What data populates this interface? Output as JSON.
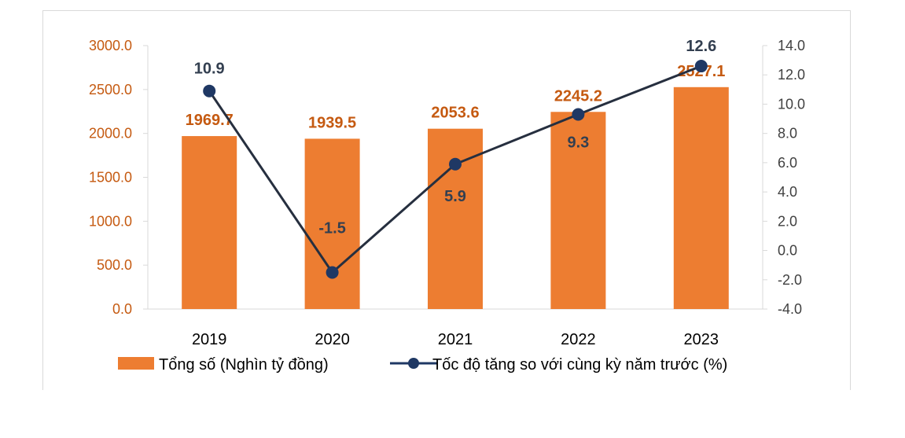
{
  "chart_data": {
    "type": "bar",
    "categories": [
      "2019",
      "2020",
      "2021",
      "2022",
      "2023"
    ],
    "series": [
      {
        "name": "Tổng số (Nghìn tỷ đồng)",
        "type": "bar",
        "axis": "left",
        "values": [
          1969.7,
          1939.5,
          2053.6,
          2245.2,
          2527.1
        ],
        "labels": [
          "1969.7",
          "1939.5",
          "2053.6",
          "2245.2",
          "2527.1"
        ],
        "color": "#ed7d31"
      },
      {
        "name": "Tốc độ tăng so với cùng kỳ năm trước (%)",
        "type": "line",
        "axis": "right",
        "values": [
          10.9,
          -1.5,
          5.9,
          9.3,
          12.6
        ],
        "labels": [
          "10.9",
          "-1.5",
          "5.9",
          "9.3",
          "12.6"
        ],
        "color": "#1f3864"
      }
    ],
    "ylim_left": [
      0,
      3000
    ],
    "yticks_left": [
      "0.0",
      "500.0",
      "1000.0",
      "1500.0",
      "2000.0",
      "2500.0",
      "3000.0"
    ],
    "ylim_right": [
      -4,
      14
    ],
    "yticks_right": [
      "-4.0",
      "-2.0",
      "0.0",
      "2.0",
      "4.0",
      "6.0",
      "8.0",
      "10.0",
      "12.0",
      "14.0"
    ],
    "grid": false,
    "legend_position": "bottom",
    "colors": {
      "left_axis_text": "#c55a11",
      "right_axis_text": "#404040",
      "line_label": "#333f50"
    }
  }
}
